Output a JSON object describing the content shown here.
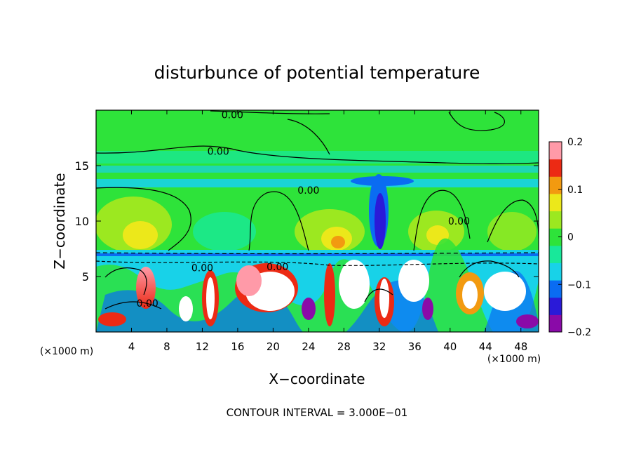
{
  "chart_data": {
    "type": "heatmap",
    "title": "disturbunce of potential temperature",
    "xlabel": "X−coordinate",
    "ylabel": "Z−coordinate",
    "x_unit_left": "(×1000 m)",
    "x_unit_right": "(×1000 m)",
    "footer": "CONTOUR INTERVAL = 3.000E−01",
    "xlim": [
      0,
      50
    ],
    "ylim": [
      0,
      20
    ],
    "x_ticks": [
      4,
      8,
      12,
      16,
      20,
      24,
      28,
      32,
      36,
      40,
      44,
      48
    ],
    "y_ticks": [
      5,
      10,
      15
    ],
    "colorbar": {
      "range": [
        -0.2,
        0.2
      ],
      "tick_values": [
        0.2,
        0.1,
        0,
        -0.1,
        -0.2
      ],
      "tick_labels": [
        "0.2",
        "0.1",
        "0",
        "−0.1",
        "−0.2"
      ]
    },
    "contour_labels": [
      {
        "text": "0.00",
        "x": 15.4,
        "y": 19.6
      },
      {
        "text": "0.00",
        "x": 13.8,
        "y": 16.3
      },
      {
        "text": "0.00",
        "x": 24.0,
        "y": 12.8
      },
      {
        "text": "0.00",
        "x": 41.0,
        "y": 10.0
      },
      {
        "text": "0.00",
        "x": 12.0,
        "y": 5.8
      },
      {
        "text": "0.00",
        "x": 20.5,
        "y": 5.9
      },
      {
        "text": "0.00",
        "x": 5.8,
        "y": 2.6
      }
    ]
  },
  "colors": {
    "background": "#ffffff",
    "field_green": "#2ee33a",
    "colormap": [
      "#8a0aa8",
      "#2a1ad8",
      "#0a6cf2",
      "#18d2e8",
      "#18e89a",
      "#2ee33a",
      "#9ce820",
      "#ece81a",
      "#f29a10",
      "#ec2a14",
      "#ff9aa8"
    ]
  }
}
